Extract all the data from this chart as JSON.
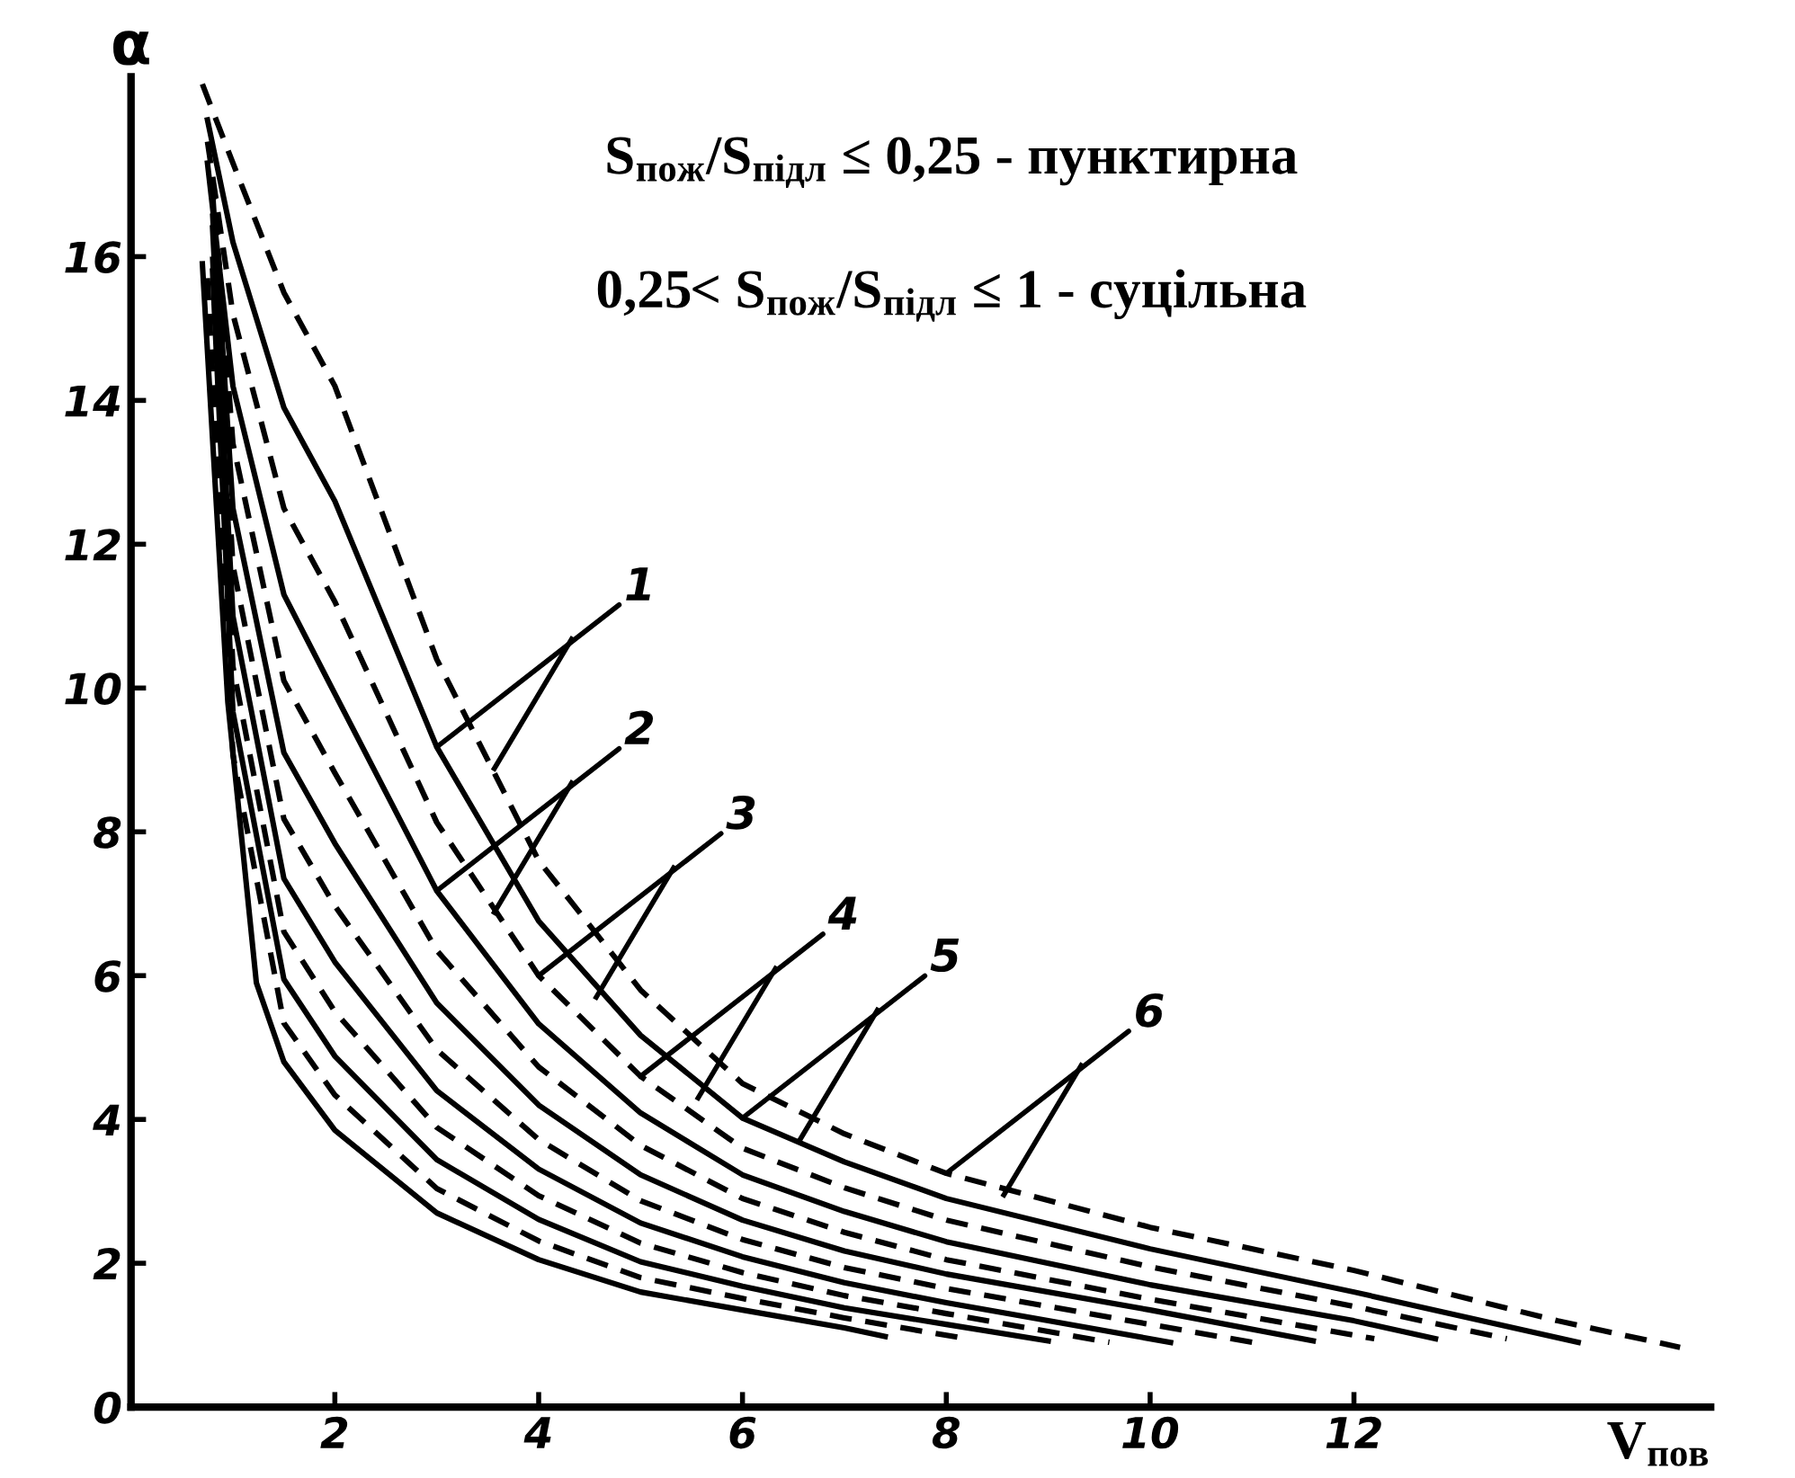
{
  "chart_data": {
    "type": "line",
    "xlabel": "V$_{пов}$",
    "ylabel": "α",
    "xlim": [
      0,
      15.5
    ],
    "ylim": [
      0,
      18.5
    ],
    "xticks": [
      2,
      4,
      6,
      8,
      10,
      12
    ],
    "yticks": [
      0,
      2,
      4,
      6,
      8,
      10,
      12,
      14,
      16
    ],
    "grid": false,
    "legend": false,
    "marker": "none",
    "series": [
      {
        "color": "#000000",
        "line_style": "solid",
        "x": [
          0.7,
          0.95,
          1.23,
          1.5,
          2,
          3,
          4,
          5,
          6,
          7,
          7.4
        ],
        "values": [
          15.9,
          9.8,
          5.9,
          4.8,
          3.85,
          2.7,
          2.05,
          1.6,
          1.35,
          1.1,
          0.98
        ]
      },
      {
        "color": "#000000",
        "line_style": "dashed",
        "x": [
          0.75,
          1,
          1.5,
          2,
          3,
          4,
          5,
          6,
          7,
          8.2
        ],
        "values": [
          15.7,
          9.07,
          5.34,
          4.34,
          3.04,
          2.31,
          1.8,
          1.51,
          1.24,
          0.95
        ]
      },
      {
        "color": "#000000",
        "line_style": "solid",
        "x": [
          0.8,
          1,
          1.5,
          2,
          3,
          4,
          5,
          6,
          7,
          8,
          9
        ],
        "values": [
          15.8,
          9.67,
          5.95,
          4.88,
          3.44,
          2.61,
          2.02,
          1.68,
          1.38,
          1.15,
          0.92
        ]
      },
      {
        "color": "#000000",
        "line_style": "dashed",
        "x": [
          0.8,
          1,
          1.5,
          2,
          3,
          4,
          5,
          6,
          7,
          8,
          9.6
        ],
        "values": [
          16.0,
          10.3,
          6.61,
          5.5,
          3.89,
          2.94,
          2.28,
          1.87,
          1.55,
          1.3,
          0.9
        ]
      },
      {
        "color": "#000000",
        "line_style": "solid",
        "x": [
          0.8,
          1,
          1.5,
          2,
          3,
          4,
          5,
          6,
          7,
          8,
          9,
          10.2
        ],
        "values": [
          16.4,
          11.0,
          7.35,
          6.19,
          4.4,
          3.31,
          2.56,
          2.09,
          1.73,
          1.45,
          1.2,
          0.9
        ]
      },
      {
        "color": "#000000",
        "line_style": "dashed",
        "x": [
          0.8,
          1,
          1.5,
          2,
          3,
          4,
          5,
          6,
          7,
          8,
          10,
          11
        ],
        "values": [
          16.6,
          11.7,
          8.18,
          6.97,
          4.97,
          3.72,
          2.87,
          2.33,
          1.94,
          1.65,
          1.15,
          0.9
        ]
      },
      {
        "color": "#000000",
        "line_style": "solid",
        "x": [
          0.8,
          1,
          1.5,
          2,
          3,
          4,
          5,
          6,
          7,
          8,
          10,
          11.6
        ],
        "values": [
          16.9,
          12.5,
          9.1,
          7.84,
          5.62,
          4.2,
          3.23,
          2.6,
          2.17,
          1.85,
          1.35,
          0.92
        ]
      },
      {
        "color": "#000000",
        "line_style": "dashed",
        "x": [
          0.8,
          1,
          1.5,
          2,
          3,
          4,
          5,
          6,
          7,
          8,
          10,
          12.2
        ],
        "values": [
          17.1,
          13.4,
          10.1,
          8.82,
          6.35,
          4.73,
          3.64,
          2.9,
          2.43,
          2.05,
          1.5,
          0.95
        ]
      },
      {
        "color": "#000000",
        "line_style": "solid",
        "x": [
          0.75,
          1,
          1.5,
          2,
          3,
          4,
          5,
          6,
          7,
          8,
          10,
          12,
          12.8
        ],
        "values": [
          17.3,
          14.2,
          11.3,
          9.92,
          7.18,
          5.33,
          4.09,
          3.23,
          2.72,
          2.3,
          1.7,
          1.2,
          0.95
        ]
      },
      {
        "color": "#000000",
        "line_style": "dashed",
        "x": [
          0.75,
          1,
          1.5,
          2,
          3,
          4,
          5,
          6,
          7,
          8,
          10,
          12,
          13.5
        ],
        "values": [
          17.6,
          15.2,
          12.5,
          11.2,
          8.13,
          6.0,
          4.6,
          3.6,
          3.05,
          2.6,
          1.95,
          1.4,
          0.95
        ]
      },
      {
        "color": "#000000",
        "line_style": "solid",
        "x": [
          0.75,
          1,
          1.5,
          2,
          3,
          4,
          5,
          6,
          7,
          8,
          10,
          12,
          14.2
        ],
        "values": [
          17.9,
          16.2,
          13.9,
          12.6,
          9.18,
          6.76,
          5.17,
          4.02,
          3.41,
          2.9,
          2.2,
          1.6,
          0.9
        ]
      },
      {
        "color": "#000000",
        "line_style": "dashed",
        "x": [
          0.7,
          1,
          1.5,
          2,
          3,
          4,
          5,
          6,
          7,
          8,
          10,
          12,
          14,
          15.2
        ],
        "values": [
          18.4,
          17.3,
          15.5,
          14.2,
          10.4,
          7.6,
          5.8,
          4.5,
          3.8,
          3.25,
          2.5,
          1.9,
          1.2,
          0.83
        ]
      }
    ],
    "annotations": [
      "S$_{пож}$/S$_{підл}$ ≤ 0,25 - пунктирна",
      "0,25< S$_{пож}$/S$_{підл}$ ≤ 1 - суцільна",
      {
        "text": "1",
        "x": 3,
        "y": 9.18
      },
      {
        "text": "2",
        "x": 3,
        "y": 7.18
      },
      {
        "text": "3",
        "x": 4,
        "y": 6.0
      },
      {
        "text": "4",
        "x": 5,
        "y": 4.6
      },
      {
        "text": "5",
        "x": 6,
        "y": 4.02
      },
      {
        "text": "6",
        "x": 8,
        "y": 3.25
      }
    ]
  }
}
